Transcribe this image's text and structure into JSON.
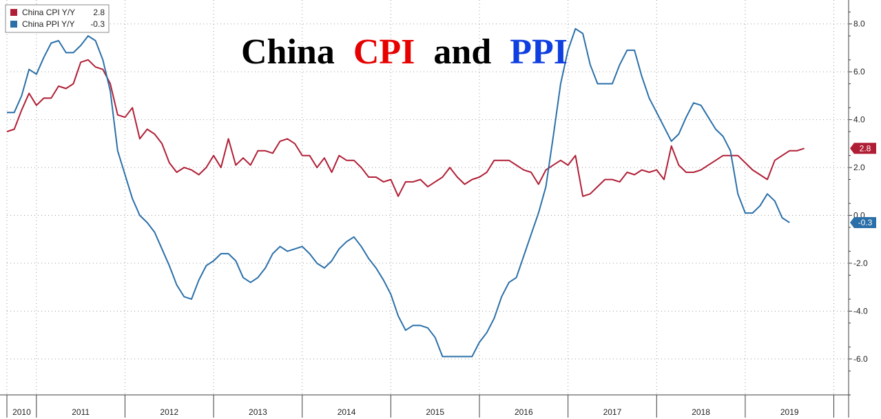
{
  "chart_data": {
    "type": "line",
    "title": {
      "prefix": "China",
      "part1": "CPI",
      "conj": "and",
      "part2": "PPI"
    },
    "colors": {
      "cpi": "#b01e35",
      "ppi": "#2a6fa8",
      "title_black": "#000000",
      "title_red": "#e60000",
      "title_blue": "#0f3fe0",
      "grid": "#9a9a9a",
      "axis": "#3c3c3c"
    },
    "xlim": [
      2010.0,
      2019.5
    ],
    "ylim": [
      -7.5,
      9.0
    ],
    "y_ticks": [
      -6,
      -4,
      -2,
      0,
      2,
      4,
      6,
      8
    ],
    "y_tick_labels": [
      "-6.0",
      "-4.0",
      "-2.0",
      "0.0",
      "2.0",
      "4.0",
      "6.0",
      "8.0"
    ],
    "year_boundaries": [
      2010.0,
      2010.333,
      2011.333,
      2012.333,
      2013.333,
      2014.333,
      2015.333,
      2016.333,
      2017.333,
      2018.333,
      2019.333
    ],
    "years": [
      "2010",
      "2011",
      "2012",
      "2013",
      "2014",
      "2015",
      "2016",
      "2017",
      "2018",
      "2019"
    ],
    "series": [
      {
        "key": "cpi",
        "name": "China CPI Y/Y",
        "last_value": "2.8",
        "start": 2010.0,
        "step": 0.08333,
        "values": [
          3.5,
          3.6,
          4.4,
          5.1,
          4.6,
          4.9,
          4.9,
          5.4,
          5.3,
          5.5,
          6.4,
          6.5,
          6.2,
          6.1,
          5.5,
          4.2,
          4.1,
          4.5,
          3.2,
          3.6,
          3.4,
          3.0,
          2.2,
          1.8,
          2.0,
          1.9,
          1.7,
          2.0,
          2.5,
          2.0,
          3.2,
          2.1,
          2.4,
          2.1,
          2.7,
          2.7,
          2.6,
          3.1,
          3.2,
          3.0,
          2.5,
          2.5,
          2.0,
          2.4,
          1.8,
          2.5,
          2.3,
          2.3,
          2.0,
          1.6,
          1.6,
          1.4,
          1.5,
          0.8,
          1.4,
          1.4,
          1.5,
          1.2,
          1.4,
          1.6,
          2.0,
          1.6,
          1.3,
          1.5,
          1.6,
          1.8,
          2.3,
          2.3,
          2.3,
          2.1,
          1.9,
          1.8,
          1.3,
          1.9,
          2.1,
          2.3,
          2.1,
          2.5,
          0.8,
          0.9,
          1.2,
          1.5,
          1.5,
          1.4,
          1.8,
          1.7,
          1.9,
          1.8,
          1.9,
          1.5,
          2.9,
          2.1,
          1.8,
          1.8,
          1.9,
          2.1,
          2.3,
          2.5,
          2.5,
          2.5,
          2.2,
          1.9,
          1.7,
          1.5,
          2.3,
          2.5,
          2.7,
          2.7,
          2.8
        ]
      },
      {
        "key": "ppi",
        "name": "China PPI Y/Y",
        "last_value": "-0.3",
        "start": 2010.0,
        "step": 0.08333,
        "values": [
          4.3,
          4.3,
          5.0,
          6.1,
          5.9,
          6.6,
          7.2,
          7.3,
          6.8,
          6.8,
          7.1,
          7.5,
          7.3,
          6.5,
          5.2,
          2.7,
          1.7,
          0.7,
          0.0,
          -0.3,
          -0.7,
          -1.4,
          -2.1,
          -2.9,
          -3.4,
          -3.5,
          -2.7,
          -2.1,
          -1.9,
          -1.6,
          -1.6,
          -1.9,
          -2.6,
          -2.8,
          -2.6,
          -2.2,
          -1.6,
          -1.3,
          -1.5,
          -1.4,
          -1.3,
          -1.6,
          -2.0,
          -2.2,
          -1.9,
          -1.4,
          -1.1,
          -0.9,
          -1.3,
          -1.8,
          -2.2,
          -2.7,
          -3.3,
          -4.2,
          -4.8,
          -4.6,
          -4.6,
          -4.7,
          -5.1,
          -5.9,
          -5.9,
          -5.9,
          -5.9,
          -5.9,
          -5.3,
          -4.9,
          -4.3,
          -3.4,
          -2.8,
          -2.6,
          -1.7,
          -0.8,
          0.1,
          1.2,
          3.3,
          5.5,
          6.9,
          7.8,
          7.6,
          6.3,
          5.5,
          5.5,
          5.5,
          6.3,
          6.9,
          6.9,
          5.8,
          4.9,
          4.3,
          3.7,
          3.1,
          3.4,
          4.1,
          4.7,
          4.6,
          4.1,
          3.6,
          3.3,
          2.7,
          0.9,
          0.1,
          0.1,
          0.4,
          0.9,
          0.6,
          -0.1,
          -0.3
        ]
      }
    ]
  },
  "legend": {
    "cpi_label": "China CPI Y/Y",
    "cpi_value": "2.8",
    "ppi_label": "China PPI Y/Y",
    "ppi_value": "-0.3"
  }
}
